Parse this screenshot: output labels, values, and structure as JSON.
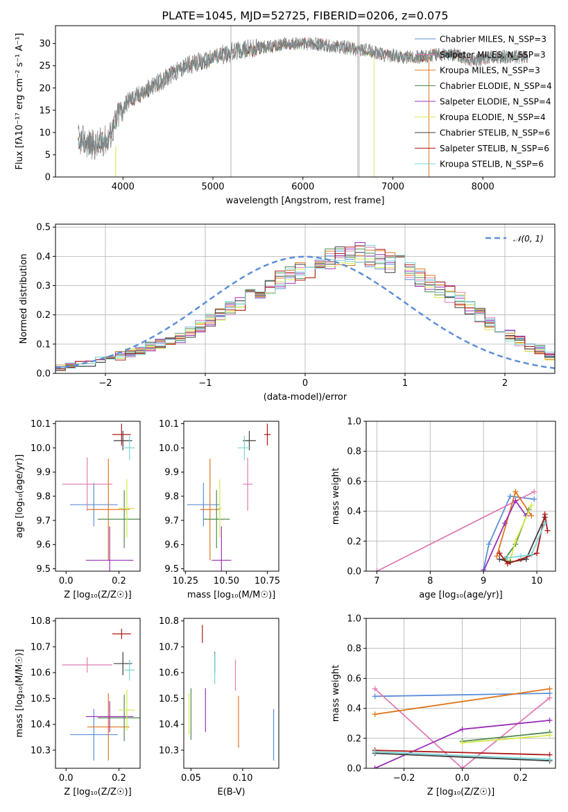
{
  "palette": {
    "chabrier_miles": "#5b8fd9",
    "salpeter_miles": "#e07bb4",
    "kroupa_miles": "#e0761b",
    "chabrier_elodie": "#4e8a4e",
    "salpeter_elodie": "#9a2fb8",
    "kroupa_elodie": "#d6e84a",
    "chabrier_stelib": "#3d3d3d",
    "salpeter_stelib": "#b01717",
    "kroupa_stelib": "#74d6d6",
    "gaussian": "#5b8fd9"
  },
  "chart_data": [
    {
      "id": "spectrum",
      "type": "line",
      "title": "PLATE=1045, MJD=52725, FIBERID=0206, z=0.075",
      "xlabel": "wavelength [Angstrom, rest frame]",
      "ylabel": "Flux [fλ10⁻¹⁷ erg cm⁻² s⁻¹ A⁻¹]",
      "xlim": [
        3250,
        8800
      ],
      "ylim": [
        0,
        34
      ],
      "xticks": [
        "4000",
        "5000",
        "6000",
        "7000",
        "8000"
      ],
      "yticks": [
        "0",
        "5",
        "10",
        "15",
        "20",
        "25",
        "30"
      ],
      "grid": false,
      "legend_position": "top-right",
      "series": [
        {
          "name": "Chabrier MILES, N_SSP=3",
          "key": "chabrier_miles"
        },
        {
          "name": "Salpeter MILES, N_SSP=3",
          "key": "salpeter_miles"
        },
        {
          "name": "Kroupa MILES, N_SSP=3",
          "key": "kroupa_miles"
        },
        {
          "name": "Chabrier ELODIE, N_SSP=4",
          "key": "chabrier_elodie"
        },
        {
          "name": "Salpeter ELODIE, N_SSP=4",
          "key": "salpeter_elodie"
        },
        {
          "name": "Kroupa ELODIE, N_SSP=4",
          "key": "kroupa_elodie"
        },
        {
          "name": "Chabrier STELIB, N_SSP=6",
          "key": "chabrier_stelib"
        },
        {
          "name": "Salpeter STELIB, N_SSP=6",
          "key": "salpeter_stelib"
        },
        {
          "name": "Kroupa STELIB, N_SSP=6",
          "key": "kroupa_stelib"
        }
      ],
      "continuum": {
        "x": [
          3500,
          3700,
          3850,
          3950,
          4050,
          4300,
          4500,
          4700,
          4900,
          5100,
          5300,
          5500,
          5700,
          5900,
          6100,
          6300,
          6500,
          6600,
          6700,
          6900,
          7100,
          7300,
          7500,
          7700,
          7900,
          8100,
          8300,
          8500
        ],
        "y": [
          8.5,
          7,
          9,
          14,
          17,
          20,
          22.5,
          25,
          26,
          27.5,
          28.5,
          29,
          29.5,
          30,
          30,
          29.5,
          29,
          28.5,
          28.5,
          27.5,
          27,
          27,
          27.5,
          27.5,
          26,
          27,
          27,
          27
        ]
      }
    },
    {
      "id": "residuals",
      "type": "bar",
      "xlabel": "(data-model)/error",
      "ylabel": "Normed distribution",
      "xlim": [
        -2.5,
        2.5
      ],
      "ylim": [
        0,
        0.51
      ],
      "xticks": [
        "−2",
        "−1",
        "0",
        "1",
        "2"
      ],
      "yticks": [
        "0.0",
        "0.1",
        "0.2",
        "0.3",
        "0.4",
        "0.5"
      ],
      "grid": true,
      "legend": "𝒩(0, 1)",
      "legend_position": "top-right",
      "bin_width": 0.1,
      "bin_start": -2.5,
      "base_values": [
        0.02,
        0.025,
        0.03,
        0.035,
        0.045,
        0.05,
        0.06,
        0.07,
        0.08,
        0.09,
        0.1,
        0.11,
        0.12,
        0.14,
        0.16,
        0.18,
        0.2,
        0.22,
        0.24,
        0.26,
        0.28,
        0.3,
        0.32,
        0.34,
        0.35,
        0.36,
        0.38,
        0.39,
        0.4,
        0.4,
        0.41,
        0.4,
        0.39,
        0.38,
        0.37,
        0.35,
        0.33,
        0.31,
        0.29,
        0.27,
        0.25,
        0.22,
        0.2,
        0.17,
        0.15,
        0.13,
        0.11,
        0.09,
        0.08,
        0.06,
        0.055,
        0.05,
        0.045,
        0.04,
        0.035,
        0.03,
        0.028,
        0.025,
        0.022,
        0.02
      ]
    },
    {
      "id": "age_vs_Z",
      "type": "scatter",
      "xlabel": "Z [log₁₀(Z/Z☉)]",
      "ylabel": "age  [log₁₀(age/yr)]",
      "xlim": [
        -0.04,
        0.28
      ],
      "ylim": [
        9.49,
        10.11
      ],
      "xticks": [
        "0.0",
        "0.2"
      ],
      "yticks": [
        "9.5",
        "9.6",
        "9.7",
        "9.8",
        "9.9",
        "10.0",
        "10.1"
      ],
      "grid": false,
      "points": [
        {
          "key": "chabrier_miles",
          "x": 0.105,
          "y": 9.765,
          "xerr": 0.09,
          "yerr": 0.09
        },
        {
          "key": "salpeter_miles",
          "x": 0.08,
          "y": 9.85,
          "xerr": 0.095,
          "yerr": 0.11
        },
        {
          "key": "kroupa_miles",
          "x": 0.16,
          "y": 9.745,
          "xerr": 0.08,
          "yerr": 0.21
        },
        {
          "key": "chabrier_elodie",
          "x": 0.22,
          "y": 9.705,
          "xerr": 0.1,
          "yerr": 0.12
        },
        {
          "key": "salpeter_elodie",
          "x": 0.165,
          "y": 9.535,
          "xerr": 0.09,
          "yerr": 0.14
        },
        {
          "key": "kroupa_elodie",
          "x": 0.23,
          "y": 9.75,
          "xerr": 0.03,
          "yerr": 0.12
        },
        {
          "key": "chabrier_stelib",
          "x": 0.215,
          "y": 10.03,
          "xerr": 0.035,
          "yerr": 0.04
        },
        {
          "key": "salpeter_stelib",
          "x": 0.21,
          "y": 10.055,
          "xerr": 0.035,
          "yerr": 0.045
        },
        {
          "key": "kroupa_stelib",
          "x": 0.24,
          "y": 10.0,
          "xerr": 0.02,
          "yerr": 0.05
        }
      ]
    },
    {
      "id": "age_vs_mass",
      "type": "scatter",
      "xlabel": "mass [log₁₀(M/M☉)]",
      "ylabel": "",
      "xlim": [
        10.24,
        10.82
      ],
      "ylim": [
        9.49,
        10.11
      ],
      "xticks": [
        "10.25",
        "10.50",
        "10.75"
      ],
      "yticks": [
        "9.5",
        "9.6",
        "9.7",
        "9.8",
        "9.9",
        "10.0",
        "10.1"
      ],
      "grid": false,
      "points": [
        {
          "key": "chabrier_miles",
          "x": 10.36,
          "y": 9.765,
          "xerr": 0.1,
          "yerr": 0.09
        },
        {
          "key": "salpeter_miles",
          "x": 10.63,
          "y": 9.85,
          "xerr": 0.03,
          "yerr": 0.11
        },
        {
          "key": "kroupa_miles",
          "x": 10.4,
          "y": 9.745,
          "xerr": 0.06,
          "yerr": 0.21
        },
        {
          "key": "chabrier_elodie",
          "x": 10.44,
          "y": 9.705,
          "xerr": 0.08,
          "yerr": 0.12
        },
        {
          "key": "salpeter_elodie",
          "x": 10.47,
          "y": 9.535,
          "xerr": 0.06,
          "yerr": 0.14
        },
        {
          "key": "kroupa_elodie",
          "x": 10.46,
          "y": 9.75,
          "xerr": 0.01,
          "yerr": 0.12
        },
        {
          "key": "chabrier_stelib",
          "x": 10.64,
          "y": 10.03,
          "xerr": 0.04,
          "yerr": 0.04
        },
        {
          "key": "salpeter_stelib",
          "x": 10.75,
          "y": 10.055,
          "xerr": 0.02,
          "yerr": 0.045
        },
        {
          "key": "kroupa_stelib",
          "x": 10.61,
          "y": 10.0,
          "xerr": 0.04,
          "yerr": 0.05
        }
      ]
    },
    {
      "id": "weight_vs_age",
      "type": "line",
      "xlabel": "age  [log₁₀(age/yr)]",
      "ylabel": "mass weight",
      "xlim": [
        6.8,
        10.35
      ],
      "ylim": [
        0,
        1.0
      ],
      "xticks": [
        "7",
        "8",
        "9",
        "10"
      ],
      "yticks": [
        "0.0",
        "0.2",
        "0.4",
        "0.6",
        "0.8",
        "1.0"
      ],
      "grid": true,
      "series": [
        {
          "key": "chabrier_miles",
          "x": [
            9.0,
            9.1,
            9.5,
            9.95
          ],
          "y": [
            0.01,
            0.18,
            0.5,
            0.48
          ]
        },
        {
          "key": "salpeter_miles",
          "x": [
            7.0,
            9.95
          ],
          "y": [
            0.0,
            0.53
          ]
        },
        {
          "key": "kroupa_miles",
          "x": [
            9.25,
            9.6,
            9.9
          ],
          "y": [
            0.1,
            0.53,
            0.37
          ]
        },
        {
          "key": "chabrier_elodie",
          "x": [
            9.4,
            9.6,
            9.85
          ],
          "y": [
            0.08,
            0.18,
            0.41
          ]
        },
        {
          "key": "salpeter_elodie",
          "x": [
            9.0,
            9.4,
            9.6,
            9.8
          ],
          "y": [
            0.0,
            0.32,
            0.47,
            0.37
          ]
        },
        {
          "key": "kroupa_elodie",
          "x": [
            9.5,
            9.6,
            9.9
          ],
          "y": [
            0.07,
            0.2,
            0.44
          ]
        },
        {
          "key": "chabrier_stelib",
          "x": [
            9.3,
            9.5,
            9.8,
            10.15
          ],
          "y": [
            0.08,
            0.06,
            0.08,
            0.36
          ]
        },
        {
          "key": "salpeter_stelib",
          "x": [
            9.3,
            9.45,
            9.7,
            10.0,
            10.15,
            10.2
          ],
          "y": [
            0.12,
            0.05,
            0.08,
            0.12,
            0.38,
            0.27
          ]
        },
        {
          "key": "kroupa_stelib",
          "x": [
            9.45,
            9.7,
            9.9,
            10.15
          ],
          "y": [
            0.09,
            0.1,
            0.11,
            0.32
          ]
        }
      ]
    },
    {
      "id": "mass_vs_Z",
      "type": "scatter",
      "xlabel": "Z [log₁₀(Z/Z☉)]",
      "ylabel": "mass [log₁₀(M/M☉)]",
      "xlim": [
        -0.04,
        0.28
      ],
      "ylim": [
        10.23,
        10.81
      ],
      "xticks": [
        "0.0",
        "0.2"
      ],
      "yticks": [
        "10.3",
        "10.4",
        "10.5",
        "10.6",
        "10.7",
        "10.8"
      ],
      "grid": false,
      "points": [
        {
          "key": "chabrier_miles",
          "x": 0.105,
          "y": 10.36,
          "xerr": 0.09,
          "yerr": 0.1
        },
        {
          "key": "salpeter_miles",
          "x": 0.08,
          "y": 10.63,
          "xerr": 0.095,
          "yerr": 0.03
        },
        {
          "key": "kroupa_miles",
          "x": 0.16,
          "y": 10.39,
          "xerr": 0.08,
          "yerr": 0.13
        },
        {
          "key": "chabrier_elodie",
          "x": 0.22,
          "y": 10.425,
          "xerr": 0.1,
          "yerr": 0.09
        },
        {
          "key": "salpeter_elodie",
          "x": 0.165,
          "y": 10.43,
          "xerr": 0.09,
          "yerr": 0.06
        },
        {
          "key": "kroupa_elodie",
          "x": 0.23,
          "y": 10.455,
          "xerr": 0.03,
          "yerr": 0.08
        },
        {
          "key": "chabrier_stelib",
          "x": 0.215,
          "y": 10.635,
          "xerr": 0.035,
          "yerr": 0.045
        },
        {
          "key": "salpeter_stelib",
          "x": 0.21,
          "y": 10.75,
          "xerr": 0.035,
          "yerr": 0.02
        },
        {
          "key": "kroupa_stelib",
          "x": 0.24,
          "y": 10.61,
          "xerr": 0.02,
          "yerr": 0.04
        }
      ]
    },
    {
      "id": "mass_vs_ebv",
      "type": "scatter",
      "xlabel": "E(B-V)",
      "ylabel": "",
      "xlim": [
        0.043,
        0.135
      ],
      "ylim": [
        10.23,
        10.81
      ],
      "xticks": [
        "0.05",
        "0.10"
      ],
      "yticks": [
        "10.3",
        "10.4",
        "10.5",
        "10.6",
        "10.7",
        "10.8"
      ],
      "grid": false,
      "points": [
        {
          "key": "chabrier_miles",
          "x": 0.13,
          "y": 10.36,
          "xerr": 0.0,
          "yerr": 0.1
        },
        {
          "key": "salpeter_miles",
          "x": 0.093,
          "y": 10.59,
          "xerr": 0.0,
          "yerr": 0.06
        },
        {
          "key": "kroupa_miles",
          "x": 0.096,
          "y": 10.41,
          "xerr": 0.0,
          "yerr": 0.1
        },
        {
          "key": "chabrier_elodie",
          "x": 0.05,
          "y": 10.44,
          "xerr": 0.0,
          "yerr": 0.1
        },
        {
          "key": "salpeter_elodie",
          "x": 0.064,
          "y": 10.455,
          "xerr": 0.0,
          "yerr": 0.085
        },
        {
          "key": "kroupa_elodie",
          "x": 0.048,
          "y": 10.44,
          "xerr": 0.0,
          "yerr": 0.08
        },
        {
          "key": "chabrier_stelib",
          "x": 0.073,
          "y": 10.64,
          "xerr": 0.0,
          "yerr": 0.04
        },
        {
          "key": "salpeter_stelib",
          "x": 0.061,
          "y": 10.75,
          "xerr": 0.0,
          "yerr": 0.035
        },
        {
          "key": "kroupa_stelib",
          "x": 0.073,
          "y": 10.615,
          "xerr": 0.0,
          "yerr": 0.06
        }
      ]
    },
    {
      "id": "weight_vs_Z",
      "type": "line",
      "xlabel": "Z [log₁₀(Z/Z☉)]",
      "ylabel": "mass weight",
      "xlim": [
        -0.33,
        0.32
      ],
      "ylim": [
        0,
        1.0
      ],
      "xticks": [
        "−0.2",
        "0.0",
        "0.2"
      ],
      "yticks": [
        "0.0",
        "0.2",
        "0.4",
        "0.6",
        "0.8",
        "1.0"
      ],
      "grid": true,
      "series": [
        {
          "key": "chabrier_miles",
          "x": [
            -0.3,
            0.3
          ],
          "y": [
            0.48,
            0.5
          ]
        },
        {
          "key": "salpeter_miles",
          "x": [
            -0.3,
            0.0,
            0.3
          ],
          "y": [
            0.53,
            0.0,
            0.47
          ]
        },
        {
          "key": "kroupa_miles",
          "x": [
            -0.3,
            0.3
          ],
          "y": [
            0.36,
            0.53
          ]
        },
        {
          "key": "chabrier_elodie",
          "x": [
            0.0,
            0.3
          ],
          "y": [
            0.18,
            0.24
          ]
        },
        {
          "key": "salpeter_elodie",
          "x": [
            -0.3,
            0.0,
            0.3
          ],
          "y": [
            0.0,
            0.26,
            0.32
          ]
        },
        {
          "key": "kroupa_elodie",
          "x": [
            0.0,
            0.3
          ],
          "y": [
            0.17,
            0.22
          ]
        },
        {
          "key": "chabrier_stelib",
          "x": [
            -0.3,
            0.3
          ],
          "y": [
            0.1,
            0.05
          ]
        },
        {
          "key": "salpeter_stelib",
          "x": [
            -0.3,
            0.3
          ],
          "y": [
            0.12,
            0.09
          ]
        },
        {
          "key": "kroupa_stelib",
          "x": [
            -0.3,
            0.3
          ],
          "y": [
            0.11,
            0.06
          ]
        }
      ]
    }
  ]
}
